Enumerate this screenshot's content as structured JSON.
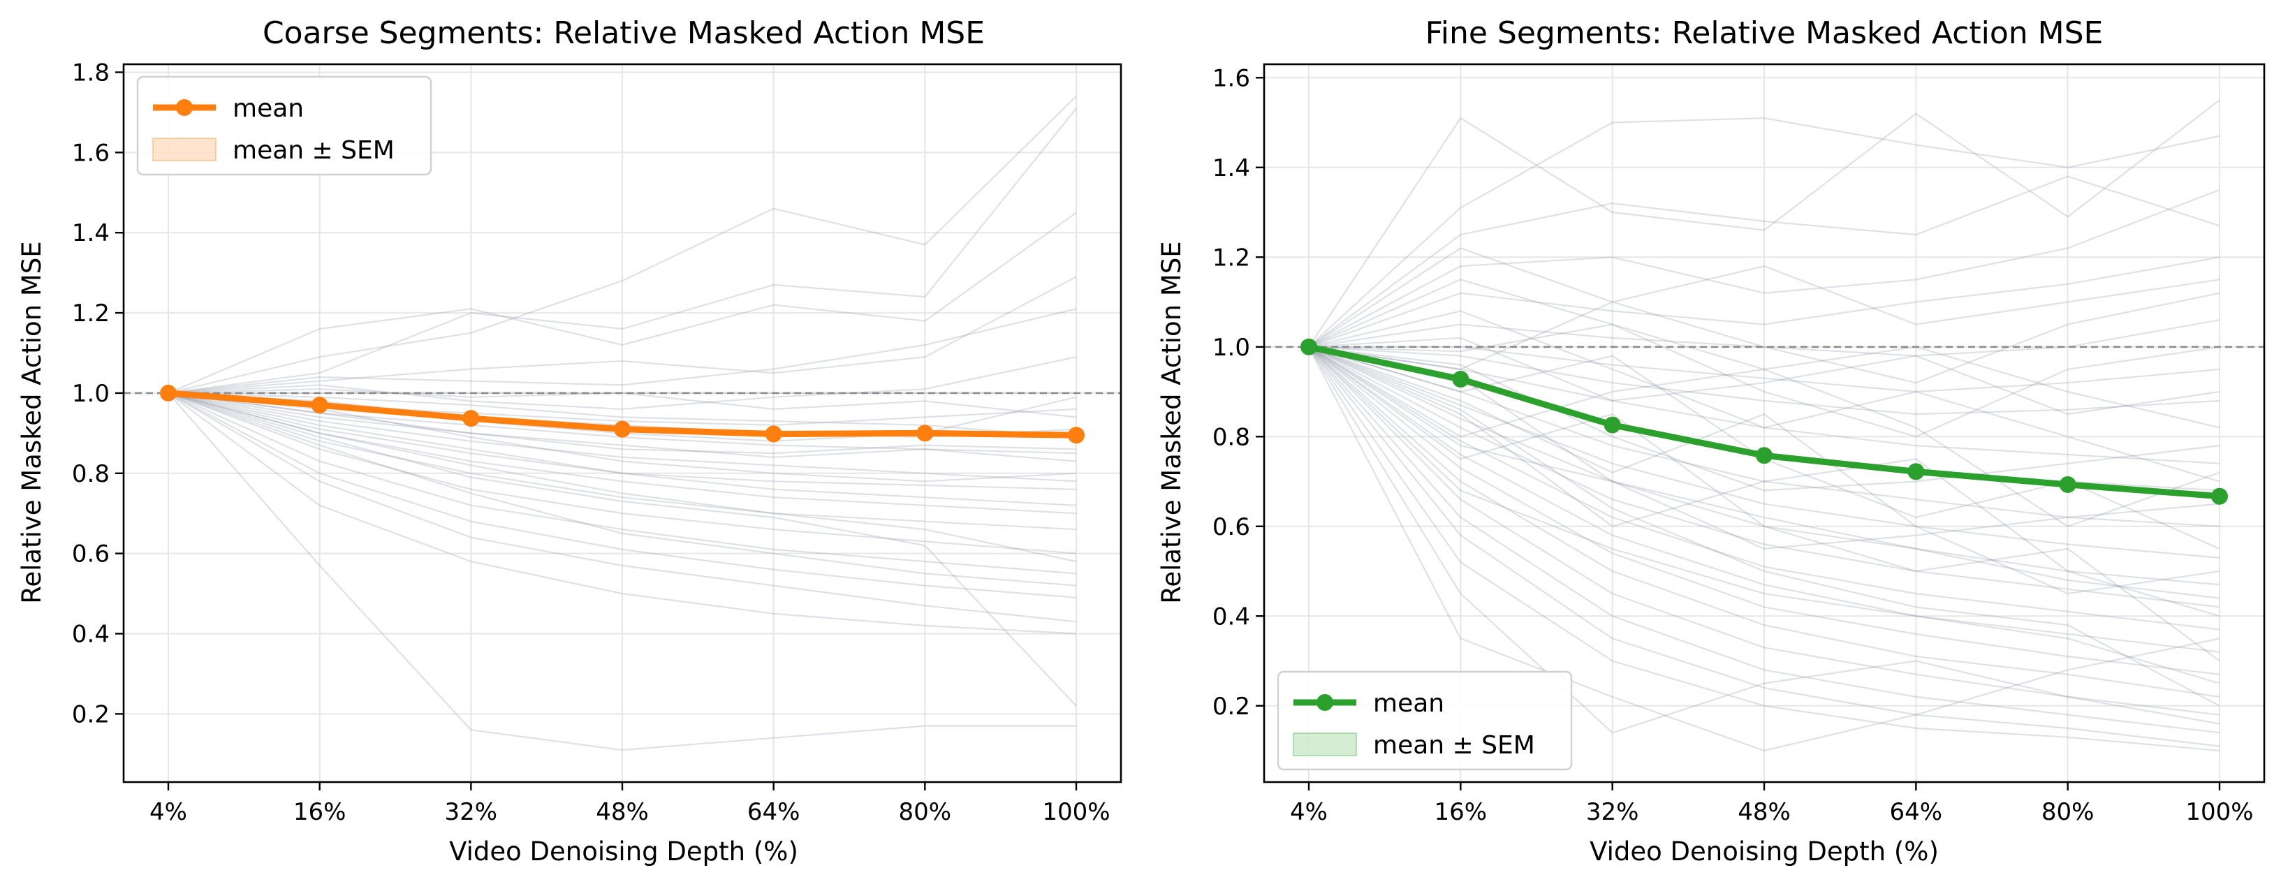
{
  "chart_data": [
    {
      "type": "line",
      "title": "Coarse Segments: Relative Masked Action MSE",
      "xlabel": "Video Denoising Depth (%)",
      "ylabel": "Relative Masked Action MSE",
      "categories": [
        "4%",
        "16%",
        "32%",
        "48%",
        "64%",
        "80%",
        "100%"
      ],
      "ylim": [
        0.03,
        1.82
      ],
      "yticks": [
        0.2,
        0.4,
        0.6,
        0.8,
        1.0,
        1.2,
        1.4,
        1.6,
        1.8
      ],
      "reference_line": 1.0,
      "grid": true,
      "legend_position": "upper-left",
      "accent_color": "#ff7f0e",
      "series": [
        {
          "name": "mean",
          "values": [
            1.0,
            0.97,
            0.937,
            0.91,
            0.898,
            0.9,
            0.895
          ]
        }
      ],
      "band_label": "mean ± SEM",
      "background_traces": [
        [
          1.0,
          1.09,
          1.15,
          1.28,
          1.46,
          1.37,
          1.74
        ],
        [
          1.0,
          1.05,
          1.2,
          1.16,
          1.27,
          1.24,
          1.71
        ],
        [
          1.0,
          1.16,
          1.21,
          1.12,
          1.22,
          1.18,
          1.45
        ],
        [
          1.0,
          1.03,
          1.06,
          1.08,
          1.05,
          1.09,
          1.29
        ],
        [
          1.0,
          1.0,
          1.0,
          1.0,
          1.0,
          1.0,
          1.0
        ],
        [
          1.0,
          1.02,
          0.98,
          0.96,
          0.99,
          1.01,
          1.09
        ],
        [
          1.0,
          0.97,
          0.95,
          0.93,
          0.92,
          0.94,
          0.96
        ],
        [
          1.0,
          0.95,
          0.9,
          0.87,
          0.84,
          0.86,
          0.83
        ],
        [
          1.0,
          0.93,
          0.88,
          0.84,
          0.82,
          0.8,
          0.78
        ],
        [
          1.0,
          0.91,
          0.85,
          0.8,
          0.78,
          0.77,
          0.76
        ],
        [
          1.0,
          0.9,
          0.83,
          0.78,
          0.74,
          0.72,
          0.7
        ],
        [
          1.0,
          0.88,
          0.8,
          0.74,
          0.7,
          0.68,
          0.66
        ],
        [
          1.0,
          0.86,
          0.76,
          0.7,
          0.66,
          0.63,
          0.6
        ],
        [
          1.0,
          0.83,
          0.72,
          0.66,
          0.61,
          0.58,
          0.55
        ],
        [
          1.0,
          0.8,
          0.68,
          0.61,
          0.56,
          0.52,
          0.49
        ],
        [
          1.0,
          0.78,
          0.64,
          0.57,
          0.52,
          0.47,
          0.43
        ],
        [
          1.0,
          0.72,
          0.58,
          0.5,
          0.45,
          0.42,
          0.4
        ],
        [
          1.0,
          0.57,
          0.16,
          0.11,
          0.14,
          0.17,
          0.17
        ],
        [
          1.0,
          0.89,
          0.79,
          0.73,
          0.69,
          0.62,
          0.22
        ],
        [
          1.0,
          0.97,
          0.93,
          0.9,
          0.88,
          0.9,
          0.99
        ],
        [
          1.0,
          0.95,
          0.92,
          0.89,
          0.87,
          0.86,
          0.85
        ],
        [
          1.0,
          1.01,
          0.99,
          1.0,
          0.96,
          0.98,
          0.94
        ],
        [
          1.0,
          0.99,
          0.97,
          0.94,
          0.93,
          0.92,
          0.89
        ],
        [
          1.0,
          0.94,
          0.9,
          0.86,
          0.85,
          0.87,
          0.86
        ],
        [
          1.0,
          1.04,
          1.03,
          1.02,
          1.06,
          1.12,
          1.21
        ],
        [
          1.0,
          0.92,
          0.86,
          0.8,
          0.76,
          0.74,
          0.72
        ],
        [
          1.0,
          0.96,
          0.89,
          0.83,
          0.8,
          0.78,
          0.8
        ],
        [
          1.0,
          0.9,
          0.82,
          0.75,
          0.7,
          0.66,
          0.58
        ],
        [
          1.0,
          0.87,
          0.75,
          0.65,
          0.6,
          0.55,
          0.52
        ],
        [
          1.0,
          0.98,
          0.94,
          0.92,
          0.9,
          0.89,
          0.91
        ]
      ]
    },
    {
      "type": "line",
      "title": "Fine Segments: Relative Masked Action MSE",
      "xlabel": "Video Denoising Depth (%)",
      "ylabel": "Relative Masked Action MSE",
      "categories": [
        "4%",
        "16%",
        "32%",
        "48%",
        "64%",
        "80%",
        "100%"
      ],
      "ylim": [
        0.03,
        1.63
      ],
      "yticks": [
        0.2,
        0.4,
        0.6,
        0.8,
        1.0,
        1.2,
        1.4,
        1.6
      ],
      "reference_line": 1.0,
      "grid": true,
      "legend_position": "lower-left",
      "accent_color": "#2ca02c",
      "series": [
        {
          "name": "mean",
          "values": [
            1.0,
            0.928,
            0.826,
            0.758,
            0.722,
            0.693,
            0.667
          ]
        }
      ],
      "band_label": "mean ± SEM",
      "background_traces": [
        [
          1.0,
          1.51,
          1.3,
          1.26,
          1.52,
          1.29,
          1.55
        ],
        [
          1.0,
          1.31,
          1.5,
          1.51,
          1.45,
          1.4,
          1.47
        ],
        [
          1.0,
          1.25,
          1.32,
          1.28,
          1.25,
          1.38,
          1.27
        ],
        [
          1.0,
          1.18,
          1.2,
          1.12,
          1.15,
          1.22,
          1.35
        ],
        [
          1.0,
          1.12,
          1.08,
          1.05,
          1.1,
          1.14,
          1.2
        ],
        [
          1.0,
          1.05,
          1.02,
          1.0,
          0.98,
          1.0,
          1.06
        ],
        [
          1.0,
          1.0,
          0.96,
          0.93,
          0.9,
          0.92,
          0.95
        ],
        [
          1.0,
          0.98,
          0.92,
          0.88,
          0.85,
          0.86,
          0.88
        ],
        [
          1.0,
          0.95,
          0.88,
          0.82,
          0.78,
          0.76,
          0.74
        ],
        [
          1.0,
          0.92,
          0.83,
          0.76,
          0.72,
          0.7,
          0.68
        ],
        [
          1.0,
          0.9,
          0.78,
          0.7,
          0.66,
          0.62,
          0.6
        ],
        [
          1.0,
          0.87,
          0.74,
          0.65,
          0.6,
          0.56,
          0.53
        ],
        [
          1.0,
          0.84,
          0.7,
          0.6,
          0.55,
          0.5,
          0.47
        ],
        [
          1.0,
          0.82,
          0.66,
          0.56,
          0.5,
          0.46,
          0.42
        ],
        [
          1.0,
          0.79,
          0.62,
          0.51,
          0.45,
          0.41,
          0.37
        ],
        [
          1.0,
          0.76,
          0.58,
          0.47,
          0.4,
          0.36,
          0.32
        ],
        [
          1.0,
          0.73,
          0.54,
          0.42,
          0.36,
          0.31,
          0.27
        ],
        [
          1.0,
          0.7,
          0.5,
          0.38,
          0.31,
          0.27,
          0.22
        ],
        [
          1.0,
          0.66,
          0.45,
          0.33,
          0.27,
          0.22,
          0.18
        ],
        [
          1.0,
          0.62,
          0.4,
          0.28,
          0.22,
          0.18,
          0.14
        ],
        [
          1.0,
          0.58,
          0.35,
          0.24,
          0.18,
          0.15,
          0.11
        ],
        [
          1.0,
          0.52,
          0.3,
          0.2,
          0.15,
          0.13,
          0.1
        ],
        [
          1.0,
          0.45,
          0.14,
          0.25,
          0.3,
          0.22,
          0.16
        ],
        [
          1.0,
          0.35,
          0.22,
          0.1,
          0.18,
          0.28,
          0.35
        ],
        [
          1.0,
          0.95,
          1.1,
          1.0,
          0.92,
          1.05,
          1.12
        ],
        [
          1.0,
          1.08,
          0.95,
          0.82,
          0.9,
          0.8,
          0.7
        ],
        [
          1.0,
          0.9,
          0.98,
          0.75,
          0.62,
          0.7,
          0.55
        ],
        [
          1.0,
          0.8,
          0.9,
          0.95,
          0.82,
          0.6,
          0.72
        ],
        [
          1.0,
          0.85,
          0.6,
          0.7,
          0.75,
          0.5,
          0.4
        ],
        [
          1.0,
          0.75,
          0.85,
          0.6,
          0.5,
          0.55,
          0.3
        ],
        [
          1.0,
          1.02,
          0.88,
          0.92,
          0.98,
          0.85,
          0.9
        ],
        [
          1.0,
          0.96,
          0.8,
          0.68,
          0.7,
          0.74,
          0.78
        ],
        [
          1.0,
          0.88,
          0.72,
          0.85,
          0.6,
          0.45,
          0.5
        ],
        [
          1.0,
          0.93,
          0.7,
          0.55,
          0.58,
          0.62,
          0.65
        ],
        [
          1.0,
          1.15,
          1.05,
          0.9,
          0.8,
          0.95,
          1.0
        ],
        [
          1.0,
          0.68,
          0.55,
          0.45,
          0.4,
          0.35,
          0.25
        ],
        [
          1.0,
          1.22,
          1.1,
          1.18,
          1.05,
          1.1,
          1.15
        ],
        [
          1.0,
          0.99,
          1.05,
          0.95,
          1.0,
          0.9,
          0.82
        ],
        [
          1.0,
          0.86,
          0.64,
          0.5,
          0.42,
          0.38,
          0.2
        ],
        [
          1.0,
          0.78,
          0.7,
          0.62,
          0.55,
          0.48,
          0.44
        ]
      ]
    }
  ]
}
